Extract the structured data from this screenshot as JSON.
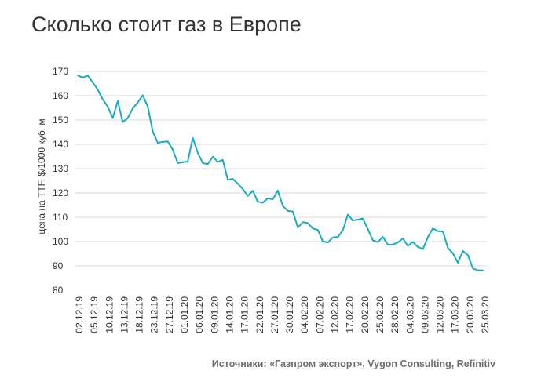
{
  "header": {
    "title": "Сколько стоит газ в Европе"
  },
  "footer": {
    "source": "Источники: «Газпром экспорт», Vygon Consulting, Refinitiv"
  },
  "colors": {
    "line": "#1aabbe",
    "grid": "#d9d9d9",
    "text": "#333333"
  },
  "chart_data": {
    "type": "line",
    "title": "Сколько стоит газ в Европе",
    "xlabel": "",
    "ylabel": "цена на TTF, $/1000 куб. м",
    "ylim": [
      80,
      170
    ],
    "yticks": [
      80,
      90,
      100,
      110,
      120,
      130,
      140,
      150,
      160,
      170
    ],
    "xticks": [
      "02.12.19",
      "05.12.19",
      "10.12.19",
      "13.12.19",
      "18.12.19",
      "23.12.19",
      "27.12.19",
      "01.01.20",
      "06.01.20",
      "09.01.20",
      "14.01.20",
      "17.01.20",
      "22.01.20",
      "27.01.20",
      "30.01.20",
      "04.02.20",
      "07.02.20",
      "12.02.20",
      "17.02.20",
      "20.02.20",
      "25.02.20",
      "28.02.20",
      "04.03.20",
      "09.03.20",
      "12.03.20",
      "17.03.20",
      "20.03.20",
      "25.03.20"
    ],
    "grid": true,
    "legend": "none",
    "series": [
      {
        "values": [
          168.3,
          167.5,
          168.3,
          165.5,
          162.5,
          158.5,
          155.5,
          150.8,
          157.8,
          149.2,
          150.8,
          154.8,
          157.2,
          160.2,
          155.5,
          145.2,
          140.6,
          141.0,
          141.2,
          137.8,
          132.3,
          132.6,
          132.9,
          142.6,
          136.5,
          132.3,
          131.8,
          134.9,
          132.8,
          133.6,
          125.4,
          125.8,
          123.8,
          121.6,
          118.8,
          120.9,
          116.4,
          116.0,
          117.8,
          117.4,
          121.0,
          114.6,
          112.6,
          112.4,
          105.8,
          108.0,
          107.6,
          105.4,
          104.8,
          100.1,
          99.6,
          101.7,
          101.9,
          104.6,
          111.1,
          108.7,
          109.0,
          109.5,
          105.1,
          100.5,
          99.8,
          101.9,
          98.7,
          98.8,
          99.6,
          101.3,
          98.2,
          99.8,
          97.8,
          96.9,
          101.8,
          105.4,
          104.3,
          104.2,
          97.4,
          95.2,
          91.3,
          96.1,
          94.5,
          88.9,
          88.2,
          88.2
        ]
      }
    ]
  }
}
